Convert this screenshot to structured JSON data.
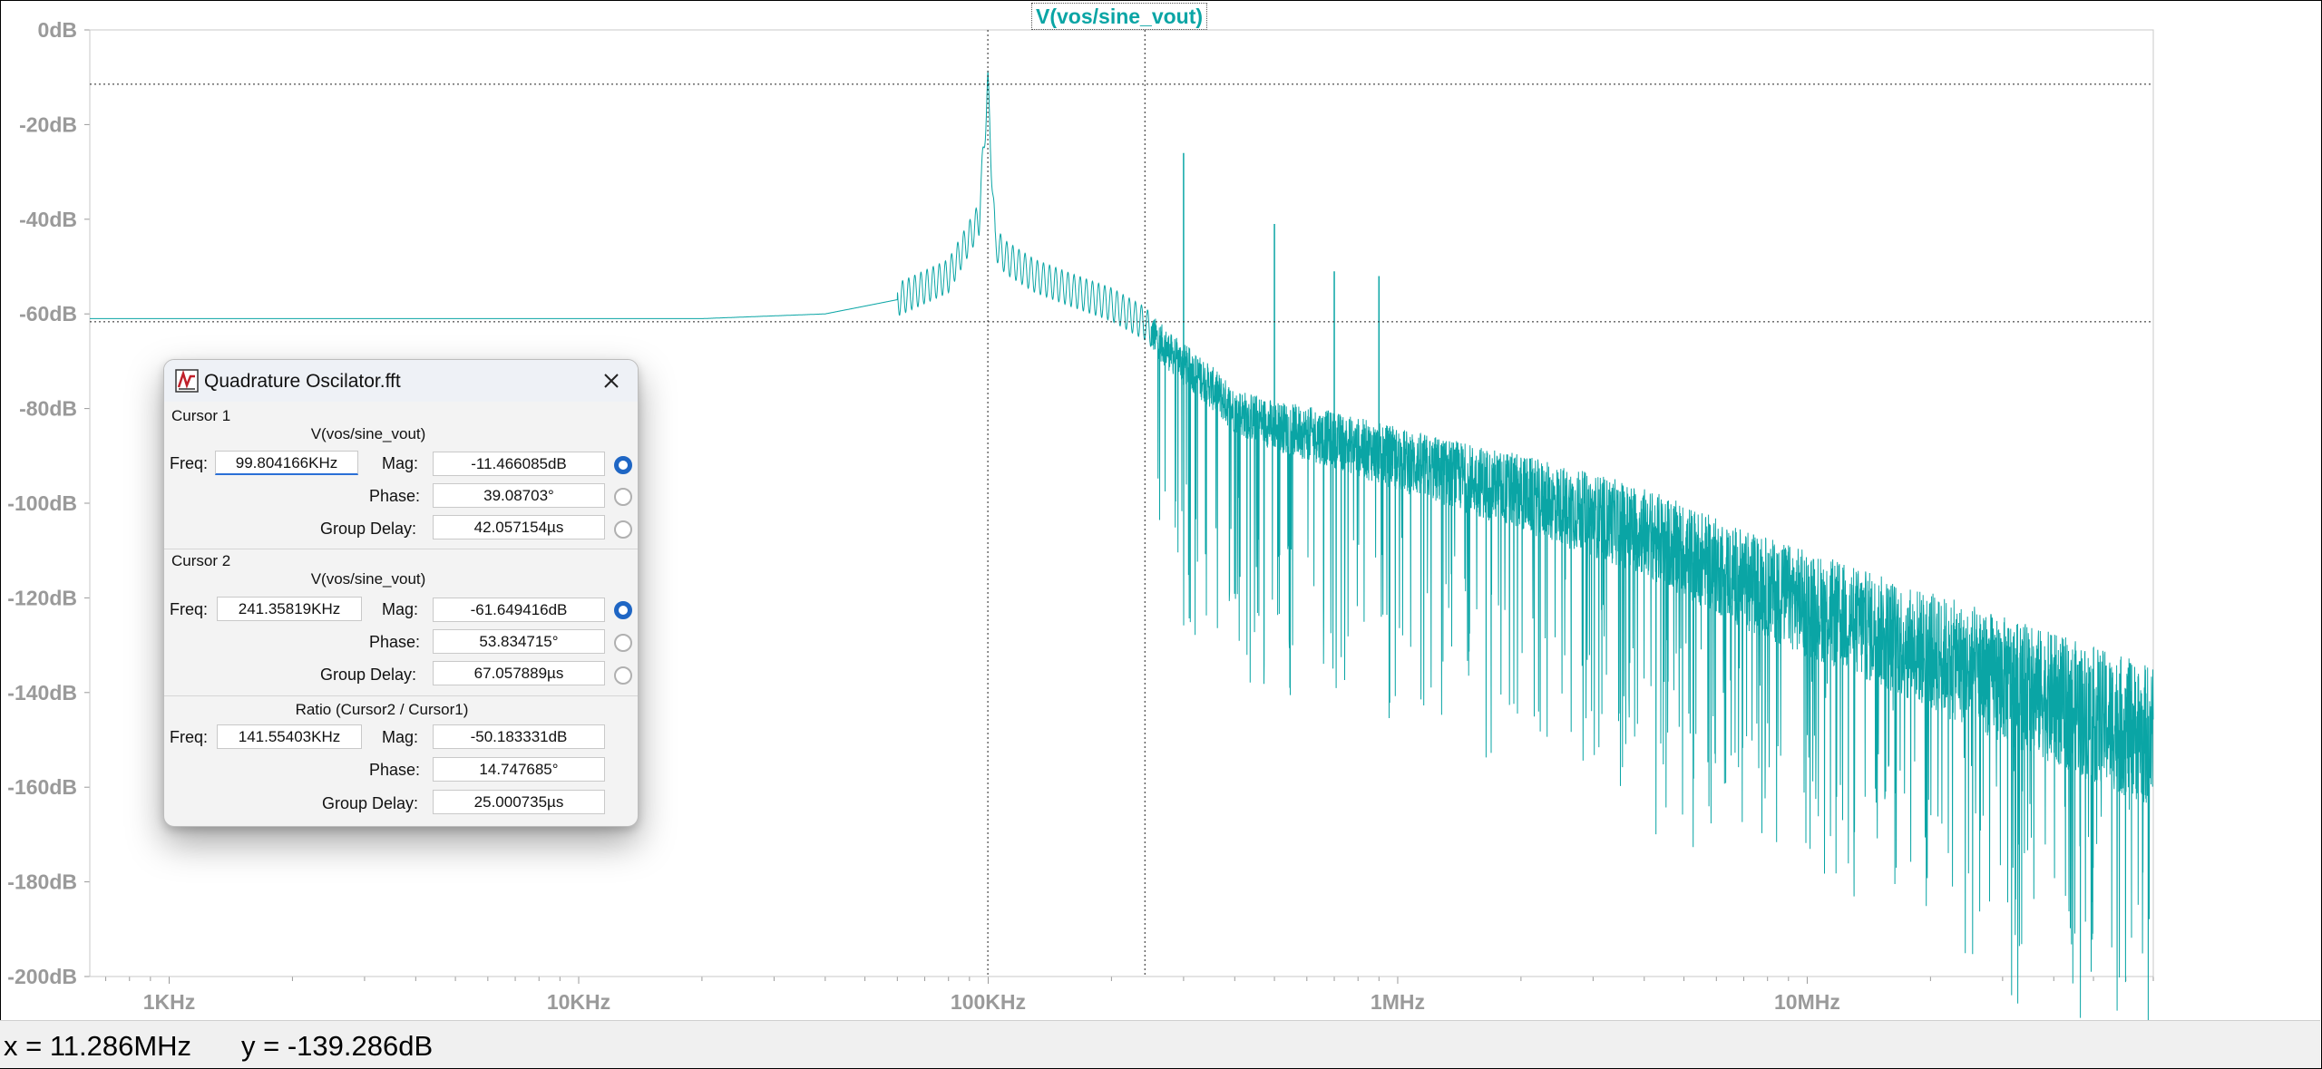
{
  "plot": {
    "trace_name": "V(vos/sine_vout)",
    "y_ticks": [
      "0dB",
      "-20dB",
      "-40dB",
      "-60dB",
      "-80dB",
      "-100dB",
      "-120dB",
      "-140dB",
      "-160dB",
      "-180dB",
      "-200dB"
    ],
    "x_ticks": [
      "1KHz",
      "10KHz",
      "100KHz",
      "1MHz",
      "10MHz"
    ],
    "trace_color": "#0aa5a5"
  },
  "chart_data": {
    "type": "line",
    "title": "V(vos/sine_vout)",
    "xscale": "log",
    "xlim_hz": [
      640,
      70000000
    ],
    "ylim_db": [
      -200,
      0
    ],
    "grid": false,
    "cursor1": {
      "freq_hz": 99804,
      "mag_db": -11.47
    },
    "cursor2": {
      "freq_hz": 241358,
      "mag_db": -61.65
    },
    "series": [
      {
        "name": "V(vos/sine_vout)",
        "x": [
          640,
          1000,
          2000,
          5000,
          10000,
          20000,
          40000,
          60000,
          80000,
          95000,
          99800,
          104000,
          110000,
          130000,
          160000,
          200000,
          241000,
          280000,
          300000,
          350000,
          400000,
          500000,
          700000,
          1000000,
          2000000,
          4000000,
          7000000,
          10000000,
          20000000,
          40000000,
          70000000
        ],
        "y": [
          -61,
          -61,
          -61,
          -61,
          -61,
          -61,
          -60,
          -57,
          -52,
          -40,
          -11.5,
          -45,
          -48,
          -52,
          -55,
          -58,
          -62,
          -68,
          -70,
          -75,
          -80,
          -83,
          -86,
          -90,
          -97,
          -105,
          -115,
          -120,
          -130,
          -140,
          -148
        ]
      }
    ]
  },
  "dialog": {
    "title": "Quadrature Oscilator.fft",
    "cursor1": {
      "section": "Cursor 1",
      "trace": "V(vos/sine_vout)",
      "freq_label": "Freq:",
      "freq": "99.804166KHz",
      "mag_label": "Mag:",
      "mag": "-11.466085dB",
      "phase_label": "Phase:",
      "phase": "39.08703°",
      "gd_label": "Group Delay:",
      "gd": "42.057154µs"
    },
    "cursor2": {
      "section": "Cursor 2",
      "trace": "V(vos/sine_vout)",
      "freq_label": "Freq:",
      "freq": "241.35819KHz",
      "mag_label": "Mag:",
      "mag": "-61.649416dB",
      "phase_label": "Phase:",
      "phase": "53.834715°",
      "gd_label": "Group Delay:",
      "gd": "67.057889µs"
    },
    "ratio": {
      "section": "Ratio (Cursor2 / Cursor1)",
      "freq_label": "Freq:",
      "freq": "141.55403KHz",
      "mag_label": "Mag:",
      "mag": "-50.183331dB",
      "phase_label": "Phase:",
      "phase": "14.747685°",
      "gd_label": "Group Delay:",
      "gd": "25.000735µs"
    }
  },
  "status": {
    "x": "x = 11.286MHz",
    "y": "y = -139.286dB"
  }
}
